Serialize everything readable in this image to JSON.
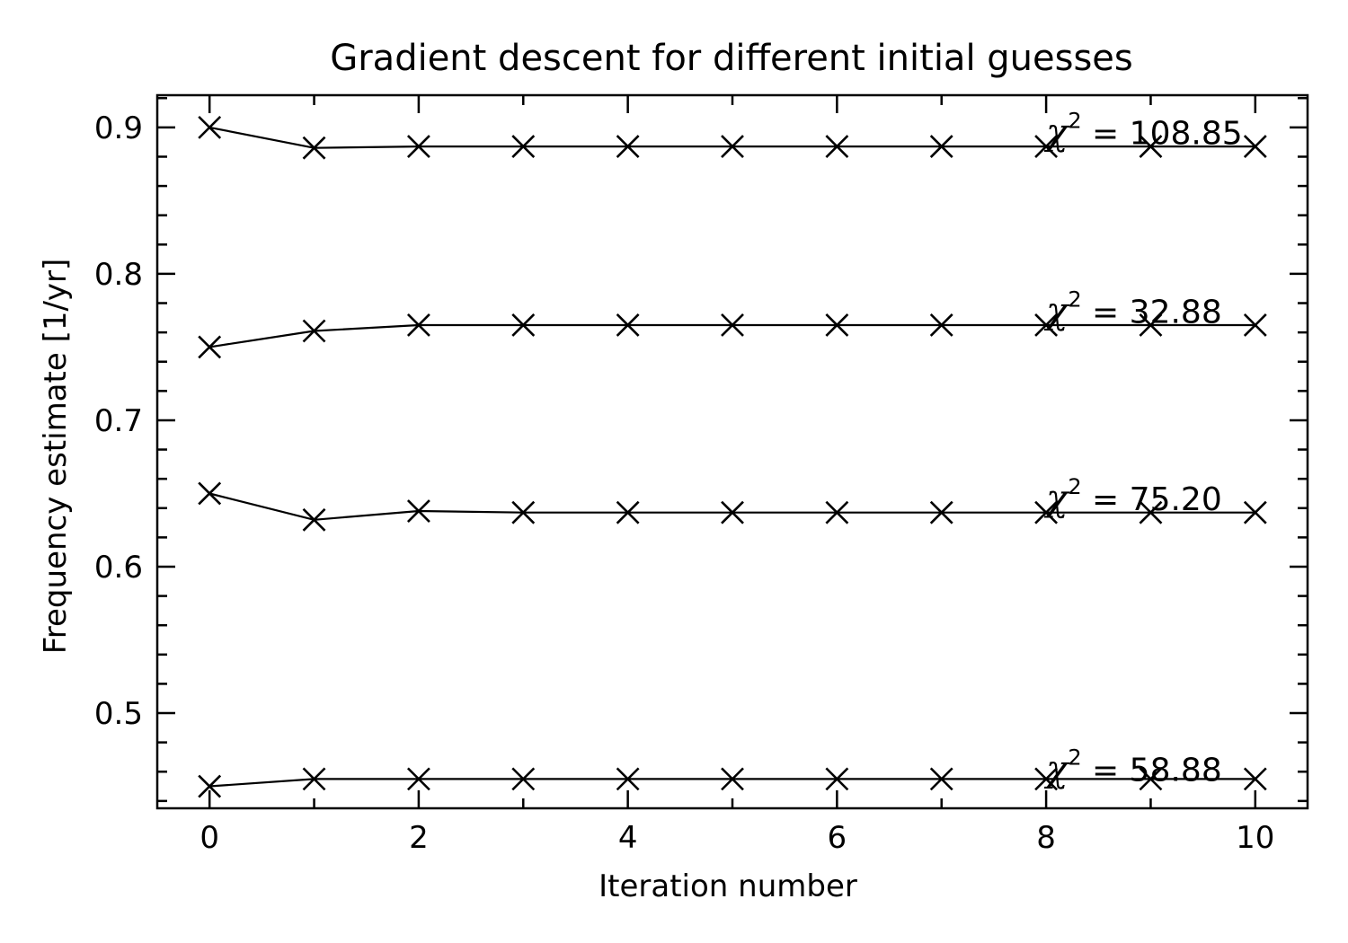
{
  "chart_data": {
    "type": "line",
    "title": "Gradient descent for different initial guesses",
    "xlabel": "Iteration number",
    "ylabel": "Frequency estimate [1/yr]",
    "xlim": [
      -0.5,
      10.5
    ],
    "ylim": [
      0.435,
      0.922
    ],
    "x_ticks": [
      0,
      2,
      4,
      6,
      8,
      10
    ],
    "x_tick_labels": [
      "0",
      "2",
      "4",
      "6",
      "8",
      "10"
    ],
    "x_minor_step": 1,
    "y_ticks": [
      0.5,
      0.6,
      0.7,
      0.8,
      0.9
    ],
    "y_tick_labels": [
      "0.5",
      "0.6",
      "0.7",
      "0.8",
      "0.9"
    ],
    "y_minor_step": 0.02,
    "marker": "x",
    "color": "#000000",
    "grid": false,
    "x": [
      0,
      1,
      2,
      3,
      4,
      5,
      6,
      7,
      8,
      9,
      10
    ],
    "series": [
      {
        "values": [
          0.9,
          0.886,
          0.887,
          0.887,
          0.887,
          0.887,
          0.887,
          0.887,
          0.887,
          0.887,
          0.887
        ]
      },
      {
        "values": [
          0.75,
          0.761,
          0.765,
          0.765,
          0.765,
          0.765,
          0.765,
          0.765,
          0.765,
          0.765,
          0.765
        ]
      },
      {
        "values": [
          0.65,
          0.632,
          0.638,
          0.637,
          0.637,
          0.637,
          0.637,
          0.637,
          0.637,
          0.637,
          0.637
        ]
      },
      {
        "values": [
          0.45,
          0.455,
          0.455,
          0.455,
          0.455,
          0.455,
          0.455,
          0.455,
          0.455,
          0.455,
          0.455
        ]
      }
    ],
    "annotations": [
      {
        "symbol": "χ",
        "power": "2",
        "text": " = 108.85",
        "x": 8.0,
        "y": 0.896
      },
      {
        "symbol": "χ",
        "power": "2",
        "text": " = 32.88",
        "x": 8.0,
        "y": 0.774
      },
      {
        "symbol": "χ",
        "power": "2",
        "text": " = 75.20",
        "x": 8.0,
        "y": 0.646
      },
      {
        "symbol": "χ",
        "power": "2",
        "text": " = 58.88",
        "x": 8.0,
        "y": 0.461
      }
    ]
  }
}
